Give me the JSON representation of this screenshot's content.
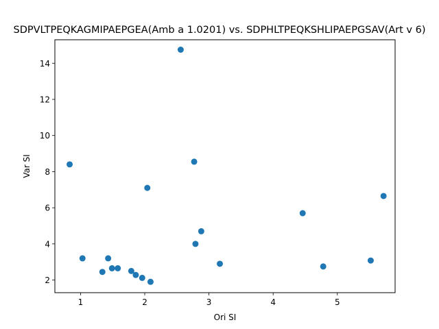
{
  "chart_data": {
    "type": "scatter",
    "title": "SDPVLTPEQKAGMIPAEPGEA(Amb a 1.0201) vs. SDPHLTPEQKSHLIPAEPGSAV(Art v 6)",
    "xlabel": "Ori SI",
    "ylabel": "Var SI",
    "xlim": [
      0.6,
      5.9
    ],
    "ylim": [
      1.3,
      15.3
    ],
    "xticks": [
      1,
      2,
      3,
      4,
      5
    ],
    "yticks": [
      2,
      4,
      6,
      8,
      10,
      12,
      14
    ],
    "marker_color": "#1f77b4",
    "grid": false,
    "points": [
      {
        "x": 2.56,
        "y": 14.75
      },
      {
        "x": 0.83,
        "y": 8.4
      },
      {
        "x": 2.77,
        "y": 8.55
      },
      {
        "x": 2.04,
        "y": 7.1
      },
      {
        "x": 5.72,
        "y": 6.65
      },
      {
        "x": 4.46,
        "y": 5.7
      },
      {
        "x": 2.88,
        "y": 4.7
      },
      {
        "x": 2.79,
        "y": 4.0
      },
      {
        "x": 1.03,
        "y": 3.2
      },
      {
        "x": 1.43,
        "y": 3.2
      },
      {
        "x": 5.52,
        "y": 3.08
      },
      {
        "x": 3.17,
        "y": 2.9
      },
      {
        "x": 4.78,
        "y": 2.75
      },
      {
        "x": 1.49,
        "y": 2.65
      },
      {
        "x": 1.58,
        "y": 2.65
      },
      {
        "x": 1.79,
        "y": 2.5
      },
      {
        "x": 1.34,
        "y": 2.45
      },
      {
        "x": 1.86,
        "y": 2.28
      },
      {
        "x": 1.96,
        "y": 2.12
      },
      {
        "x": 2.09,
        "y": 1.9
      }
    ]
  }
}
